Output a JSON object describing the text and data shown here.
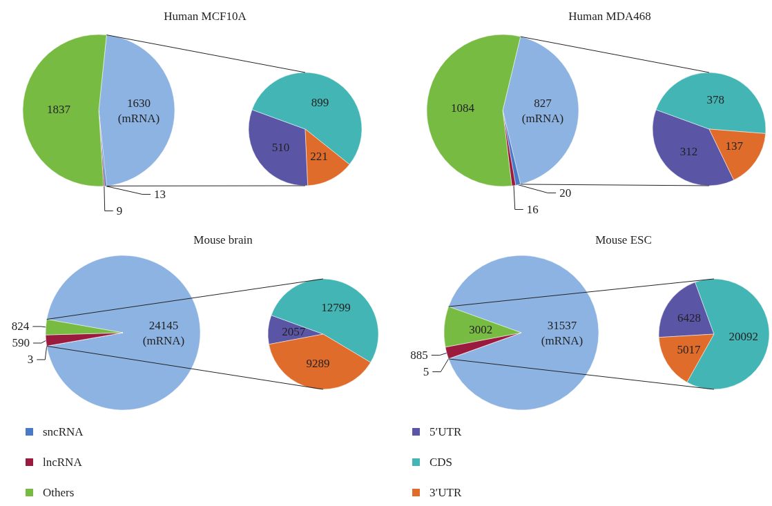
{
  "chart_data": [
    {
      "type": "pie",
      "title": "Human MCF10A",
      "categories": [
        null,
        "sncRNA",
        "lncRNA",
        "Others"
      ],
      "values": [
        1630,
        13,
        9,
        1837
      ],
      "colors": [
        "#8db3e2",
        "#4a7ac6",
        "#9b1b3e",
        "#77bb43"
      ],
      "value_labels": [
        "1630\n(mRNA)",
        "13",
        "9",
        "1837"
      ],
      "legend": "bottom"
    },
    {
      "type": "pie",
      "categories": [
        "5′UTR",
        "CDS",
        "3′UTR"
      ],
      "values": [
        510,
        899,
        221
      ],
      "colors": [
        "#5b55a6",
        "#43b5b5",
        "#e06c2b"
      ],
      "data_labels": true,
      "legend": "bottom"
    },
    {
      "type": "pie",
      "title": "Human MDA468",
      "categories": [
        null,
        null,
        null,
        null
      ],
      "values": [
        827,
        20,
        16,
        1084
      ],
      "colors": [
        "#8db3e2",
        "#4a7ac6",
        "#9b1b3e",
        "#77bb43"
      ],
      "value_labels": [
        "827\n(mRNA)",
        "20",
        "16",
        "1084"
      ]
    },
    {
      "type": "pie",
      "categories": [
        null,
        null,
        null
      ],
      "values": [
        312,
        378,
        137
      ],
      "colors": [
        "#5b55a6",
        "#43b5b5",
        "#e06c2b"
      ],
      "data_labels": true
    },
    {
      "type": "pie",
      "title": "Mouse brain",
      "categories": [
        null,
        null,
        null,
        null
      ],
      "values": [
        24145,
        3,
        590,
        824
      ],
      "colors": [
        "#8db3e2",
        "#4a7ac6",
        "#9b1b3e",
        "#77bb43"
      ],
      "value_labels": [
        "24145\n(mRNA)",
        "3",
        "590",
        "824"
      ]
    },
    {
      "type": "pie",
      "categories": [
        null,
        null,
        null
      ],
      "values": [
        2057,
        12799,
        9289
      ],
      "colors": [
        "#5b55a6",
        "#43b5b5",
        "#e06c2b"
      ],
      "data_labels": true
    },
    {
      "type": "pie",
      "title": "Mouse ESC",
      "categories": [
        null,
        null,
        null,
        null
      ],
      "values": [
        31537,
        5,
        885,
        3002
      ],
      "colors": [
        "#8db3e2",
        "#4a7ac6",
        "#9b1b3e",
        "#77bb43"
      ],
      "value_labels": [
        "31537\n(mRNA)",
        "5",
        "885",
        "3002"
      ]
    },
    {
      "type": "pie",
      "categories": [
        null,
        null,
        null
      ],
      "values": [
        6428,
        20092,
        5017
      ],
      "colors": [
        "#5b55a6",
        "#43b5b5",
        "#e06c2b"
      ],
      "data_labels": true
    }
  ]
}
